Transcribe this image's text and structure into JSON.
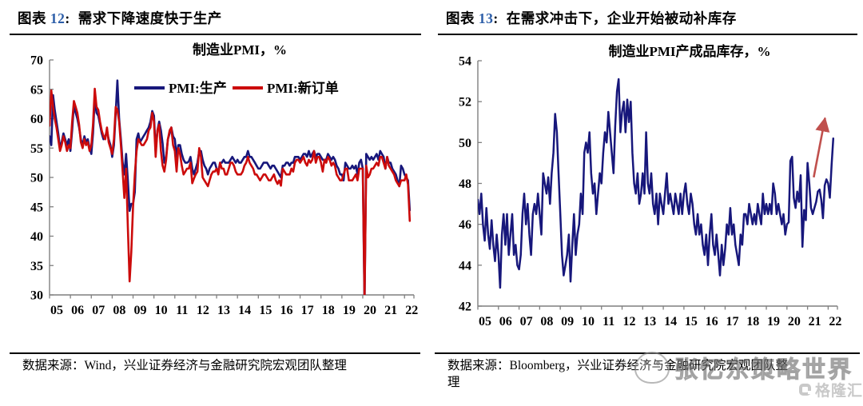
{
  "colors": {
    "navy": "#17177B",
    "red": "#CC0B0B",
    "arrow": "#C0504D",
    "axis": "#7F7F7F",
    "header_number": "#2B5DA8",
    "watermark_gray": "#8C8C8C",
    "logo_gray": "#C9C9C9"
  },
  "figures": [
    {
      "header": {
        "label": "图表",
        "number": "12",
        "colon": ":",
        "title": "需求下降速度快于生产"
      },
      "source_lines": [
        "数据来源：Wind，兴业证券经济与金融研究院宏观团队整理"
      ]
    },
    {
      "header": {
        "label": "图表",
        "number": "13",
        "colon": ":",
        "title": "在需求冲击下，企业开始被动补库存"
      },
      "source_lines": [
        "数据来源：Bloomberg，兴业证券经济与金融研究院宏观团队整",
        "理"
      ]
    }
  ],
  "watermark": {
    "text": "张忆东策略世界"
  },
  "logo": {
    "text": "格隆汇"
  },
  "chart_data": [
    {
      "type": "line",
      "title": "制造业PMI，%",
      "x_start": 2005,
      "x_months_per_point": 1,
      "x_end": 2022.45,
      "x_tick_labels": [
        "05",
        "06",
        "07",
        "08",
        "09",
        "10",
        "11",
        "12",
        "13",
        "14",
        "15",
        "16",
        "17",
        "18",
        "19",
        "20",
        "21",
        "22"
      ],
      "ylim": [
        30,
        70
      ],
      "yticks": [
        30,
        35,
        40,
        45,
        50,
        55,
        60,
        65,
        70
      ],
      "grid": false,
      "legend_position": "top-center",
      "series": [
        {
          "name": "PMI:生产",
          "color": "#17177B",
          "values": [
            57.0,
            55.5,
            64.0,
            61.5,
            59.5,
            57.5,
            55.0,
            56.0,
            57.5,
            56.5,
            55.5,
            56.5,
            54.5,
            58.0,
            62.5,
            61.0,
            60.0,
            58.5,
            56.5,
            55.5,
            57.0,
            56.0,
            56.5,
            55.0,
            54.0,
            57.5,
            63.5,
            61.0,
            60.5,
            59.0,
            57.5,
            56.5,
            57.0,
            58.0,
            56.5,
            55.5,
            53.5,
            55.5,
            61.0,
            66.5,
            60.0,
            56.5,
            52.5,
            50.5,
            54.0,
            49.5,
            44.3,
            45.5,
            45.5,
            47.5,
            56.5,
            57.5,
            56.0,
            56.5,
            57.0,
            57.5,
            58.0,
            58.5,
            59.5,
            61.3,
            60.5,
            54.5,
            58.0,
            59.5,
            58.0,
            55.8,
            52.5,
            53.5,
            56.5,
            57.5,
            58.5,
            57.0,
            56.5,
            53.5,
            55.5,
            55.5,
            54.0,
            53.0,
            52.5,
            52.5,
            52.7,
            53.5,
            51.5,
            50.5,
            51.5,
            52.5,
            54.5,
            54.5,
            53.0,
            52.0,
            51.5,
            50.5,
            51.5,
            52.0,
            52.5,
            52.5,
            51.5,
            51.0,
            52.5,
            52.5,
            53.0,
            52.5,
            52.5,
            52.5,
            53.0,
            53.5,
            53.0,
            52.5,
            53.0,
            52.5,
            52.5,
            53.0,
            53.5,
            53.5,
            54.5,
            53.5,
            53.5,
            53.0,
            52.5,
            52.0,
            51.5,
            51.5,
            52.0,
            52.5,
            52.5,
            52.5,
            52.0,
            51.5,
            52.0,
            52.0,
            51.5,
            51.0,
            50.5,
            50.0,
            52.0,
            52.0,
            52.5,
            52.5,
            52.0,
            52.5,
            52.5,
            53.5,
            53.5,
            53.5,
            53.0,
            53.5,
            54.0,
            54.0,
            53.5,
            54.5,
            53.5,
            54.0,
            54.5,
            53.5,
            54.0,
            54.0,
            53.5,
            53.0,
            53.0,
            53.0,
            54.0,
            53.5,
            53.0,
            53.5,
            53.0,
            52.0,
            51.5,
            50.5,
            50.5,
            49.5,
            52.5,
            52.0,
            51.5,
            51.5,
            52.0,
            51.5,
            52.0,
            50.5,
            52.5,
            53.0,
            51.5,
            27.8,
            54.0,
            53.5,
            53.0,
            53.5,
            53.0,
            53.5,
            54.0,
            53.0,
            54.5,
            54.0,
            53.5,
            51.5,
            53.5,
            52.5,
            52.5,
            51.5,
            51.0,
            50.5,
            49.5,
            48.5,
            52.0,
            51.5,
            50.5,
            50.0,
            49.5,
            44.4
          ]
        },
        {
          "name": "PMI:新订单",
          "color": "#CC0B0B",
          "values": [
            58.8,
            64.8,
            62.0,
            60.0,
            58.5,
            56.5,
            54.5,
            55.5,
            57.0,
            56.0,
            54.5,
            55.5,
            55.0,
            59.5,
            63.0,
            62.0,
            61.0,
            59.0,
            56.0,
            55.0,
            56.5,
            55.5,
            56.0,
            54.5,
            55.5,
            59.0,
            65.1,
            62.0,
            61.5,
            59.5,
            58.0,
            57.0,
            56.5,
            58.5,
            56.0,
            55.0,
            54.0,
            56.5,
            62.0,
            61.5,
            59.5,
            55.5,
            51.0,
            46.5,
            51.5,
            41.5,
            32.3,
            37.3,
            45.0,
            50.5,
            54.5,
            56.5,
            56.0,
            55.5,
            55.5,
            56.0,
            56.5,
            58.0,
            58.5,
            61.0,
            59.5,
            53.5,
            58.0,
            59.0,
            54.5,
            52.0,
            51.0,
            53.0,
            56.5,
            58.0,
            58.5,
            55.5,
            54.5,
            51.0,
            55.0,
            54.0,
            52.0,
            50.5,
            51.0,
            51.5,
            51.5,
            52.5,
            49.0,
            49.8,
            50.5,
            51.0,
            55.0,
            53.5,
            50.0,
            49.5,
            49.0,
            48.5,
            49.5,
            50.5,
            51.0,
            51.0,
            51.5,
            50.5,
            52.5,
            51.5,
            51.5,
            50.5,
            50.5,
            51.5,
            52.5,
            52.5,
            52.0,
            51.0,
            50.5,
            50.5,
            50.5,
            51.0,
            52.0,
            52.5,
            53.5,
            52.5,
            52.0,
            51.5,
            50.5,
            50.5,
            50.0,
            49.5,
            50.0,
            50.5,
            50.5,
            50.0,
            49.5,
            49.5,
            50.0,
            50.5,
            49.5,
            48.9,
            49.5,
            48.6,
            51.5,
            51.0,
            50.5,
            50.5,
            50.5,
            51.5,
            51.0,
            52.5,
            53.0,
            53.0,
            52.5,
            53.0,
            53.5,
            52.5,
            52.0,
            53.0,
            52.5,
            53.0,
            54.5,
            52.5,
            53.5,
            53.5,
            52.5,
            51.0,
            53.0,
            52.5,
            53.5,
            53.0,
            52.0,
            52.5,
            52.0,
            50.5,
            50.0,
            49.5,
            49.5,
            50.5,
            51.5,
            51.5,
            49.5,
            49.5,
            49.5,
            50.0,
            50.5,
            49.5,
            51.5,
            51.5,
            51.5,
            29.3,
            52.0,
            50.0,
            50.5,
            51.5,
            51.5,
            52.0,
            52.5,
            52.0,
            53.5,
            53.5,
            52.5,
            51.5,
            53.5,
            52.0,
            51.5,
            51.0,
            50.5,
            49.5,
            49.0,
            48.5,
            49.5,
            49.5,
            49.5,
            50.5,
            48.8,
            42.6
          ]
        }
      ]
    },
    {
      "type": "line",
      "title": "制造业PMI产成品库存，%",
      "x_start": 2005,
      "x_months_per_point": 1,
      "x_end": 2022.45,
      "x_tick_labels": [
        "05",
        "06",
        "07",
        "08",
        "09",
        "10",
        "11",
        "12",
        "13",
        "14",
        "15",
        "16",
        "17",
        "18",
        "19",
        "20",
        "21",
        "22"
      ],
      "ylim": [
        42,
        54
      ],
      "yticks": [
        42,
        44,
        46,
        48,
        50,
        52,
        54
      ],
      "grid": false,
      "legend_position": "none",
      "arrow": {
        "x1": 2021.3,
        "y1": 48.3,
        "x2": 2021.85,
        "y2": 51.2,
        "color": "#C0504D"
      },
      "series": [
        {
          "name": "制造业PMI产成品库存",
          "color": "#17177B",
          "values": [
            47.2,
            46.5,
            47.5,
            46.0,
            45.2,
            46.8,
            45.5,
            44.8,
            46.2,
            45.0,
            44.2,
            45.5,
            44.5,
            42.9,
            45.5,
            46.5,
            45.0,
            46.5,
            44.5,
            45.5,
            46.5,
            44.5,
            45.0,
            44.0,
            43.8,
            44.5,
            46.5,
            47.5,
            46.0,
            47.0,
            45.5,
            44.5,
            46.5,
            47.0,
            46.5,
            47.5,
            46.5,
            45.5,
            48.5,
            48.0,
            47.5,
            48.3,
            47.0,
            48.5,
            49.5,
            51.4,
            50.5,
            48.5,
            46.5,
            44.5,
            43.5,
            44.0,
            44.5,
            45.5,
            43.2,
            45.0,
            46.5,
            44.5,
            45.5,
            46.0,
            47.5,
            46.5,
            49.5,
            50.0,
            49.5,
            50.5,
            48.5,
            47.5,
            48.0,
            46.5,
            47.5,
            48.5,
            48.0,
            49.5,
            50.5,
            50.0,
            51.5,
            50.5,
            49.5,
            48.5,
            50.8,
            52.5,
            53.1,
            50.5,
            51.5,
            52.0,
            50.5,
            52.1,
            51.0,
            52.0,
            49.5,
            48.0,
            47.5,
            48.5,
            47.0,
            47.5,
            48.5,
            47.5,
            50.5,
            48.0,
            47.5,
            48.5,
            47.0,
            46.5,
            47.5,
            46.0,
            47.5,
            47.0,
            46.5,
            47.5,
            48.5,
            47.0,
            47.5,
            47.0,
            46.5,
            47.5,
            47.0,
            46.5,
            47.5,
            46.5,
            47.5,
            48.0,
            47.0,
            46.5,
            47.5,
            47.0,
            46.0,
            45.5,
            46.5,
            45.5,
            46.0,
            45.0,
            44.5,
            45.5,
            44.0,
            45.5,
            46.5,
            45.0,
            44.5,
            45.5,
            44.5,
            43.5,
            45.0,
            44.0,
            44.8,
            46.0,
            45.5,
            46.8,
            45.5,
            46.0,
            45.0,
            44.5,
            44.0,
            45.5,
            45.0,
            46.5,
            46.5,
            46.0,
            47.0,
            46.5,
            46.0,
            46.5,
            46.0,
            47.0,
            46.5,
            46.0,
            47.5,
            46.5,
            47.0,
            46.5,
            47.0,
            46.5,
            48.0,
            47.5,
            46.5,
            47.0,
            46.5,
            46.0,
            46.5,
            45.5,
            46.0,
            46.1,
            49.1,
            49.3,
            47.3,
            46.8,
            47.6,
            47.1,
            48.4,
            44.9,
            46.7,
            46.2,
            49.0,
            48.0,
            46.8,
            46.5,
            46.8,
            47.1,
            47.6,
            47.7,
            47.2,
            46.3,
            47.9,
            48.2,
            48.0,
            47.3,
            48.9,
            50.2
          ]
        }
      ]
    }
  ]
}
